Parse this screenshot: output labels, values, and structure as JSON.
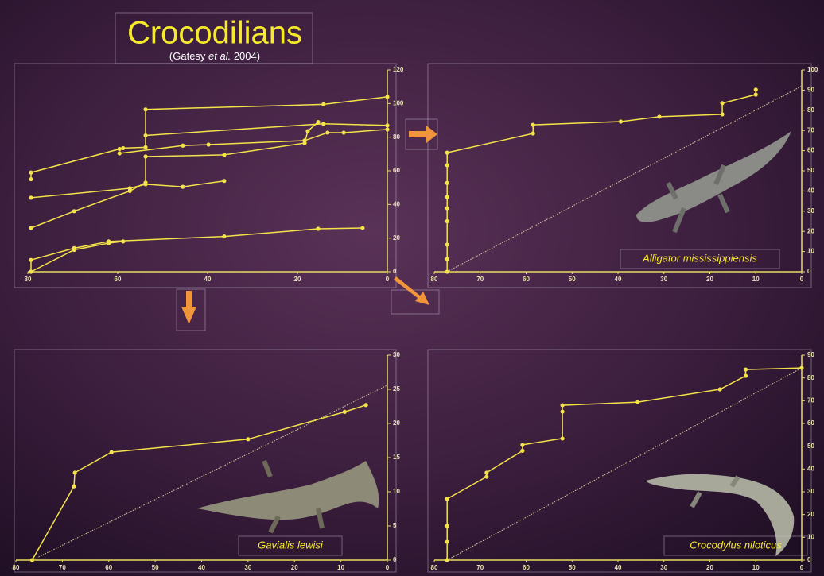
{
  "header": {
    "title": "Crocodilians",
    "subtitle": [
      "(Gatesy ",
      "et al.",
      " 2004)"
    ]
  },
  "chart_data": [
    {
      "type": "line",
      "xlim": [
        80,
        0
      ],
      "ylim": [
        0,
        120
      ],
      "xticks": [
        80,
        60,
        40,
        20,
        0
      ],
      "yticks": [
        0,
        20,
        40,
        60,
        80,
        100,
        120
      ],
      "series": [
        {
          "color": "#f3e24a",
          "x": [
            79.3,
            79.3,
            59.6,
            58.8,
            53.8,
            53.8,
            14.2,
            0
          ],
          "y": [
            55,
            59,
            73,
            73.5,
            74,
            96.5,
            99.5,
            104
          ]
        },
        {
          "color": "#f3e24a",
          "x": [
            79.3,
            57.3,
            53.8,
            45.5,
            36.3
          ],
          "y": [
            44,
            49.6,
            52,
            50.5,
            54
          ]
        },
        {
          "color": "#f3e24a",
          "x": [
            79.3,
            69.7,
            57.3,
            53.8,
            53.8,
            36.3,
            18.4,
            17.7,
            15.4
          ],
          "y": [
            26,
            36,
            48,
            53,
            68.5,
            69.5,
            76.5,
            83.6,
            89
          ]
        },
        {
          "color": "#f3e24a",
          "x": [
            53.8,
            14.2,
            0
          ],
          "y": [
            81,
            88,
            87
          ]
        },
        {
          "color": "#f3e24a",
          "x": [
            59.6,
            45.5,
            39.8,
            18.4,
            13.3,
            9.7,
            0
          ],
          "y": [
            70.4,
            75,
            75.6,
            78,
            82.7,
            82.7,
            84.6
          ]
        },
        {
          "color": "#f3e24a",
          "x": [
            79.3,
            79.3,
            69.7,
            62,
            36.3,
            15.4,
            5.5
          ],
          "y": [
            0,
            7,
            14,
            18,
            21,
            25.5,
            26
          ]
        },
        {
          "color": "#f3e24a",
          "x": [
            79.3,
            69.7,
            62,
            58.8
          ],
          "y": [
            0,
            13,
            17,
            18
          ]
        }
      ]
    },
    {
      "type": "line",
      "xlim": [
        80,
        0
      ],
      "ylim": [
        0,
        100
      ],
      "xticks": [
        80,
        70,
        60,
        50,
        40,
        30,
        20,
        10,
        0
      ],
      "yticks": [
        0,
        10,
        20,
        30,
        40,
        50,
        60,
        70,
        80,
        90,
        100
      ],
      "caption": "Alligator mississippiensis",
      "reference_line": {
        "x": [
          77.2,
          0
        ],
        "y": [
          0,
          92
        ]
      },
      "series": [
        {
          "color": "#f3e24a",
          "x": [
            77.2,
            77.2,
            77.2,
            77.2,
            77.2,
            77.2,
            77.2,
            77.2,
            77.2,
            58.5,
            58.5,
            39.4,
            31,
            17.3,
            17.3,
            10,
            10
          ],
          "y": [
            0,
            6.3,
            13.4,
            25,
            31.5,
            37,
            44,
            52.8,
            59,
            68.5,
            72.8,
            74.4,
            76.8,
            78,
            83.5,
            87.8,
            90.2
          ]
        }
      ]
    },
    {
      "type": "line",
      "xlim": [
        80,
        0
      ],
      "ylim": [
        0,
        30
      ],
      "xticks": [
        80,
        70,
        60,
        50,
        40,
        30,
        20,
        10,
        0
      ],
      "yticks": [
        0,
        5,
        10,
        15,
        20,
        25,
        30
      ],
      "caption": "Gavialis lewisi",
      "reference_line": {
        "x": [
          76.5,
          0
        ],
        "y": [
          0,
          25.6
        ]
      },
      "series": [
        {
          "color": "#f3e24a",
          "x": [
            76.5,
            67.5,
            67.3,
            59.4,
            30,
            9.2,
            4.6
          ],
          "y": [
            0,
            10.8,
            12.8,
            15.8,
            17.7,
            21.7,
            22.7
          ]
        }
      ]
    },
    {
      "type": "line",
      "xlim": [
        80,
        0
      ],
      "ylim": [
        0,
        90
      ],
      "xticks": [
        80,
        70,
        60,
        50,
        40,
        30,
        20,
        10,
        0
      ],
      "yticks": [
        0,
        10,
        20,
        30,
        40,
        50,
        60,
        70,
        80,
        90
      ],
      "caption": "Crocodylus niloticus",
      "reference_line": {
        "x": [
          77.2,
          0
        ],
        "y": [
          0,
          84.4
        ]
      },
      "series": [
        {
          "color": "#f3e24a",
          "x": [
            77.2,
            77.2,
            77.2,
            77.2,
            68.6,
            68.6,
            60.8,
            60.8,
            52.1,
            52.1,
            52.1,
            35.7,
            17.8,
            12.2,
            12.2,
            0
          ],
          "y": [
            0,
            8,
            15,
            26.9,
            36.6,
            38.4,
            48,
            50.6,
            53.4,
            65.2,
            68,
            69.4,
            75,
            80.9,
            83.7,
            84.4
          ]
        }
      ]
    }
  ]
}
